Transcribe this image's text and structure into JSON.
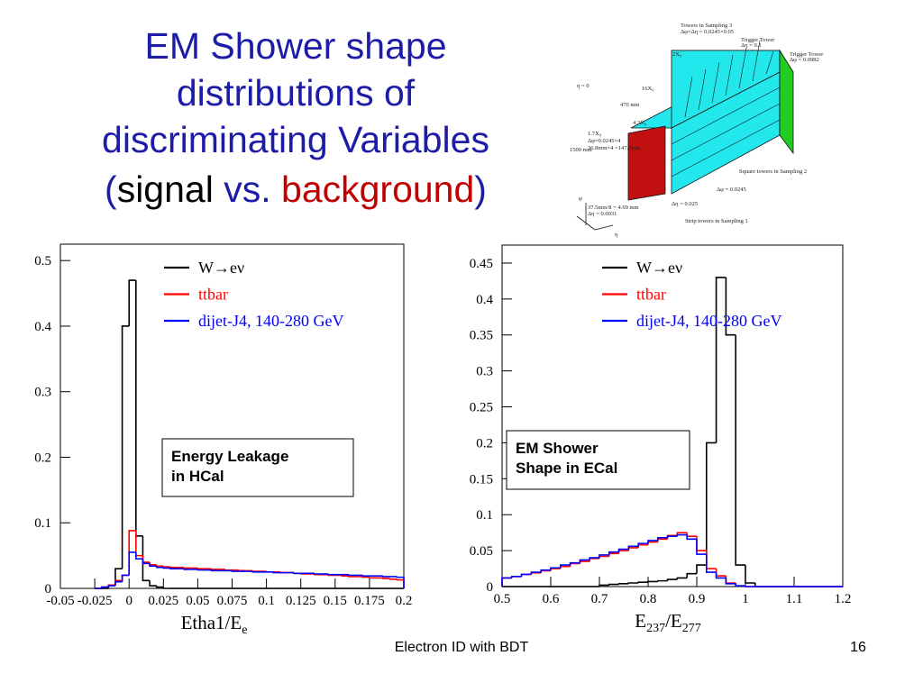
{
  "title": {
    "lines": [
      "EM Shower shape",
      "distributions of",
      "discriminating Variables"
    ],
    "last_line": [
      {
        "text": "(",
        "color": "#1c1ca8"
      },
      {
        "text": "signal",
        "color": "#000000"
      },
      {
        "text": " vs. ",
        "color": "#1c1ca8"
      },
      {
        "text": "background",
        "color": "#c00000"
      },
      {
        "text": ")",
        "color": "#1c1ca8"
      }
    ]
  },
  "diagram": {
    "labels": [
      "Towers in Sampling 3",
      "Δφ×Δη = 0.0245×0.05",
      "Trigger Tower",
      "Δη = 0.1",
      "η = 0",
      "2X₀",
      "16X₀",
      "470 mm",
      "Trigger Tower",
      "Δφ = 0.0982",
      "4.3X₀",
      "1500 mm",
      "1.7X₀",
      "Δφ=0.0245×4",
      "36.8mm×4 =147.3mm",
      "Square towers in Sampling 2",
      "Δφ = 0.0245",
      "Δη = 0.025",
      "37.5mm/8 = 4.69 mm",
      "Δη = 0.0031",
      "Strip towers in Sampling 1",
      "η",
      "φ"
    ]
  },
  "chart_data": [
    {
      "type": "histogram",
      "xlabel": [
        "Etha1/E",
        "e"
      ],
      "xlim": [
        -0.05,
        0.2
      ],
      "ylim": [
        0,
        0.525
      ],
      "xticks": [
        -0.05,
        -0.025,
        0,
        0.025,
        0.05,
        0.075,
        0.1,
        0.125,
        0.15,
        0.175,
        0.2
      ],
      "yticks": [
        0,
        0.1,
        0.2,
        0.3,
        0.4,
        0.5
      ],
      "grid": false,
      "legend": "top-left",
      "annotation": [
        "Energy Leakage",
        "in HCal"
      ],
      "bins": [
        -0.025,
        -0.02,
        -0.015,
        -0.01,
        -0.005,
        0,
        0.005,
        0.01,
        0.015,
        0.02,
        0.025,
        0.03,
        0.035,
        0.04,
        0.045,
        0.05,
        0.055,
        0.06,
        0.065,
        0.07,
        0.075,
        0.08,
        0.085,
        0.09,
        0.095,
        0.1,
        0.105,
        0.11,
        0.115,
        0.12,
        0.125,
        0.13,
        0.135,
        0.14,
        0.145,
        0.15,
        0.155,
        0.16,
        0.165,
        0.17,
        0.175,
        0.18,
        0.185,
        0.19,
        0.195,
        0.2
      ],
      "series": [
        {
          "name": "W→eν",
          "color": "#000000",
          "values": [
            0,
            0,
            0.005,
            0.03,
            0.4,
            0.47,
            0.08,
            0.012,
            0.004,
            0.002,
            0,
            0,
            0,
            0,
            0,
            0,
            0,
            0,
            0,
            0,
            0,
            0,
            0,
            0,
            0,
            0,
            0,
            0,
            0,
            0,
            0,
            0,
            0,
            0,
            0,
            0,
            0,
            0,
            0,
            0,
            0,
            0,
            0,
            0,
            0
          ]
        },
        {
          "name": "ttbar",
          "color": "#ff0000",
          "values": [
            0,
            0.002,
            0.005,
            0.012,
            0.02,
            0.088,
            0.05,
            0.04,
            0.036,
            0.034,
            0.033,
            0.032,
            0.032,
            0.031,
            0.031,
            0.03,
            0.03,
            0.029,
            0.029,
            0.028,
            0.028,
            0.027,
            0.027,
            0.026,
            0.026,
            0.025,
            0.025,
            0.024,
            0.024,
            0.023,
            0.022,
            0.022,
            0.021,
            0.021,
            0.02,
            0.02,
            0.019,
            0.018,
            0.018,
            0.017,
            0.016,
            0.016,
            0.015,
            0.014,
            0.013
          ]
        },
        {
          "name": "dijet-J4, 140-280 GeV",
          "color": "#0000ff",
          "values": [
            0,
            0.002,
            0.004,
            0.01,
            0.02,
            0.055,
            0.045,
            0.038,
            0.034,
            0.032,
            0.031,
            0.03,
            0.03,
            0.029,
            0.029,
            0.028,
            0.028,
            0.027,
            0.027,
            0.027,
            0.026,
            0.026,
            0.026,
            0.025,
            0.025,
            0.025,
            0.024,
            0.024,
            0.024,
            0.023,
            0.023,
            0.023,
            0.022,
            0.022,
            0.021,
            0.021,
            0.021,
            0.02,
            0.02,
            0.019,
            0.019,
            0.019,
            0.018,
            0.018,
            0.017
          ]
        }
      ]
    },
    {
      "type": "histogram",
      "xlabel": [
        "E",
        "237",
        "/E",
        "277"
      ],
      "xlim": [
        0.5,
        1.2
      ],
      "ylim": [
        0,
        0.475
      ],
      "xticks": [
        0.5,
        0.6,
        0.7,
        0.8,
        0.9,
        1,
        1.1,
        1.2
      ],
      "yticks": [
        0,
        0.05,
        0.1,
        0.15,
        0.2,
        0.25,
        0.3,
        0.35,
        0.4,
        0.45
      ],
      "grid": false,
      "legend": "top-left",
      "annotation": [
        "EM Shower",
        "Shape in ECal"
      ],
      "bins": [
        0.5,
        0.52,
        0.54,
        0.56,
        0.58,
        0.6,
        0.62,
        0.64,
        0.66,
        0.68,
        0.7,
        0.72,
        0.74,
        0.76,
        0.78,
        0.8,
        0.82,
        0.84,
        0.86,
        0.88,
        0.9,
        0.92,
        0.94,
        0.96,
        0.98,
        1,
        1.02,
        1.04,
        1.06,
        1.08,
        1.1,
        1.12,
        1.14,
        1.16,
        1.18,
        1.2
      ],
      "series": [
        {
          "name": "W→eν",
          "color": "#000000",
          "values": [
            0,
            0,
            0,
            0,
            0,
            0,
            0,
            0,
            0,
            0,
            0.002,
            0.003,
            0.004,
            0.005,
            0.006,
            0.007,
            0.008,
            0.01,
            0.012,
            0.018,
            0.03,
            0.2,
            0.43,
            0.35,
            0.03,
            0.005,
            0,
            0,
            0,
            0,
            0,
            0,
            0,
            0,
            0
          ]
        },
        {
          "name": "ttbar",
          "color": "#ff0000",
          "values": [
            0.012,
            0.014,
            0.017,
            0.019,
            0.022,
            0.025,
            0.028,
            0.032,
            0.035,
            0.039,
            0.042,
            0.046,
            0.05,
            0.054,
            0.058,
            0.062,
            0.066,
            0.071,
            0.075,
            0.07,
            0.05,
            0.025,
            0.015,
            0.005,
            0.001,
            0,
            0,
            0,
            0,
            0,
            0,
            0,
            0,
            0,
            0
          ]
        },
        {
          "name": "dijet-J4, 140-280 GeV",
          "color": "#0000ff",
          "values": [
            0.012,
            0.014,
            0.017,
            0.02,
            0.023,
            0.026,
            0.03,
            0.033,
            0.037,
            0.04,
            0.044,
            0.048,
            0.052,
            0.056,
            0.06,
            0.064,
            0.068,
            0.07,
            0.072,
            0.066,
            0.045,
            0.02,
            0.012,
            0.004,
            0.001,
            0,
            0,
            0,
            0,
            0,
            0,
            0,
            0,
            0,
            0
          ]
        }
      ]
    }
  ],
  "footer": {
    "text": "Electron ID with BDT",
    "page": "16"
  }
}
